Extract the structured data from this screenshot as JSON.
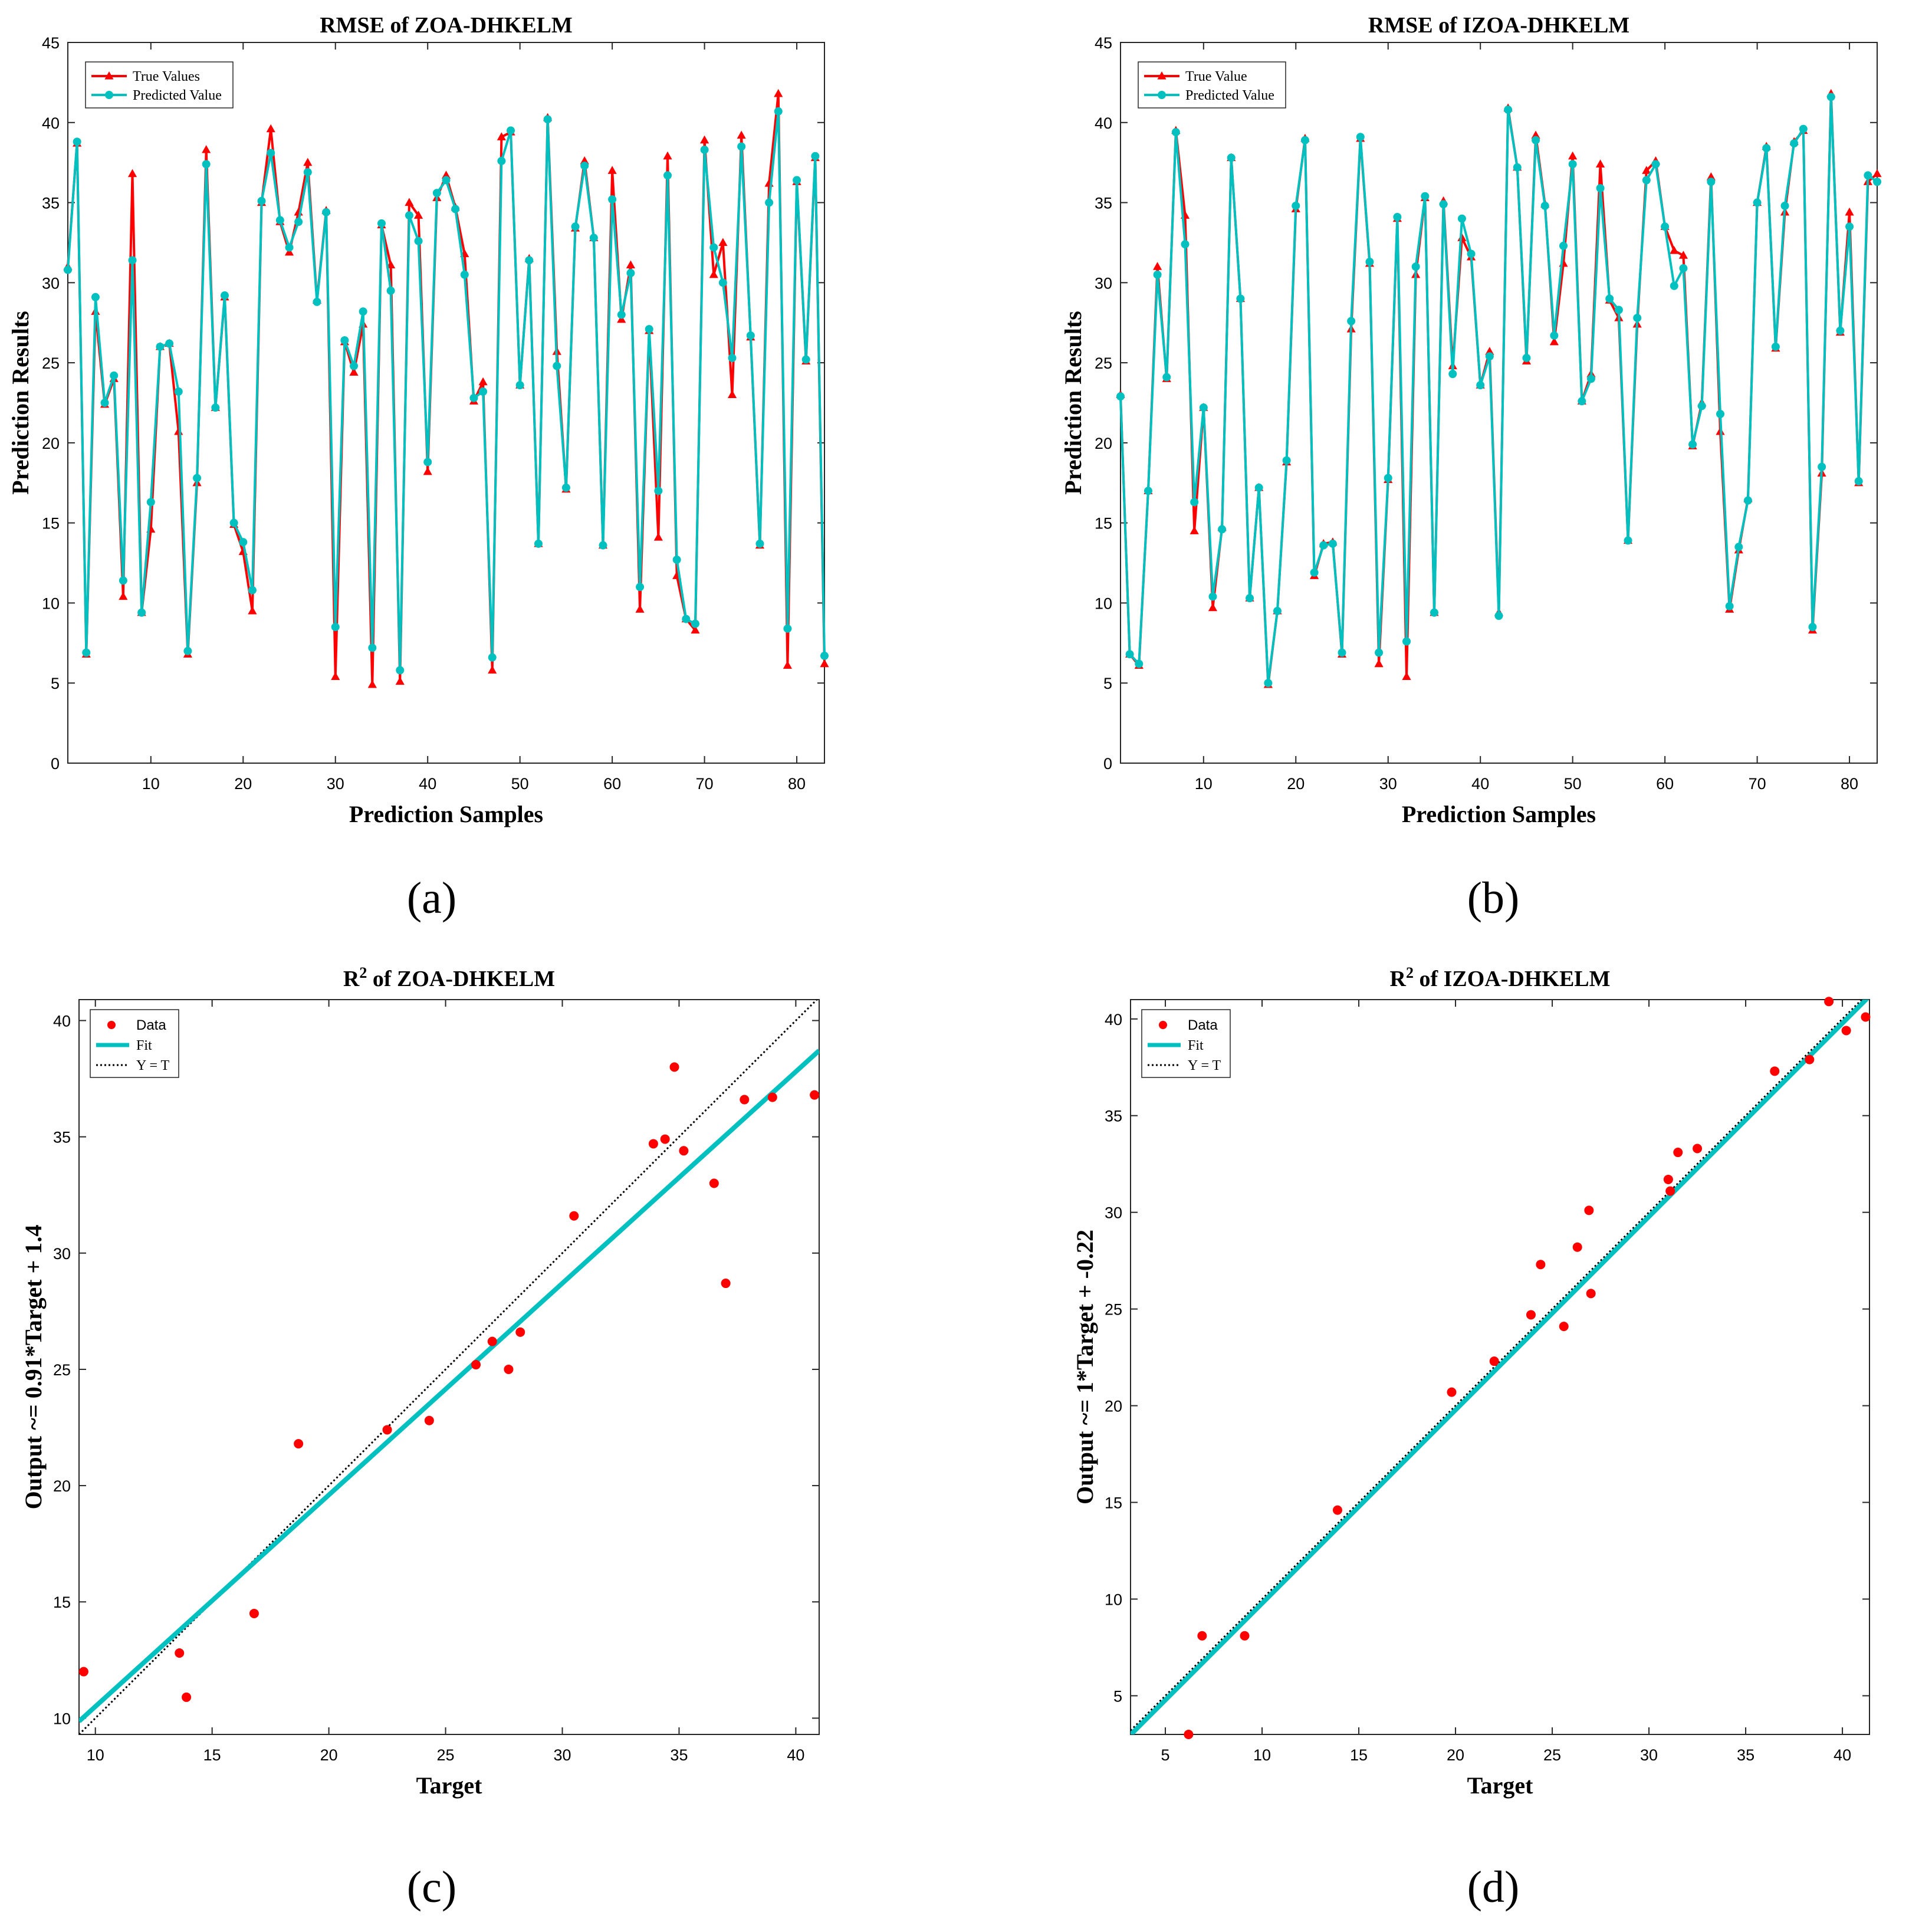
{
  "figure": {
    "panel_labels": [
      "(a)",
      "(b)",
      "(c)",
      "(d)"
    ]
  },
  "colors": {
    "true_values": "#ff0000",
    "predicted": "#00c0c0",
    "fit": "#00c0c0",
    "data_points": "#ff0000",
    "identity_line": "#000000",
    "axes": "#262626"
  },
  "chart_data": [
    {
      "panel": "a",
      "type": "line",
      "title": "RMSE of ZOA-DHKELM",
      "xlabel": "Prediction Samples",
      "ylabel": "Prediction Results",
      "xlim": [
        1,
        83
      ],
      "ylim": [
        0,
        45
      ],
      "xticks": [
        10,
        20,
        30,
        40,
        50,
        60,
        70,
        80
      ],
      "yticks": [
        0,
        5,
        10,
        15,
        20,
        25,
        30,
        35,
        40,
        45
      ],
      "legend": {
        "position": "top-left",
        "entries": [
          "True Values",
          "Predicted Value"
        ]
      },
      "series": [
        {
          "name": "True Values",
          "marker": "triangle",
          "color": "#ff0000",
          "values": [
            31.0,
            38.7,
            6.8,
            28.2,
            22.4,
            24.0,
            10.4,
            36.8,
            9.4,
            14.6,
            26.0,
            26.2,
            20.7,
            6.8,
            17.5,
            38.3,
            22.2,
            29.1,
            14.9,
            13.2,
            9.5,
            35.0,
            39.6,
            33.8,
            31.9,
            34.4,
            37.5,
            28.9,
            34.5,
            5.4,
            26.3,
            24.4,
            27.4,
            4.9,
            33.6,
            31.1,
            5.1,
            35.0,
            34.2,
            18.2,
            35.3,
            36.7,
            34.7,
            31.8,
            22.6,
            23.8,
            5.8,
            39.1,
            39.4,
            23.6,
            31.5,
            13.7,
            40.3,
            25.7,
            17.1,
            33.4,
            37.6,
            32.8,
            13.6,
            37.0,
            27.7,
            31.1,
            9.6,
            27.0,
            14.1,
            37.9,
            11.7,
            9.0,
            8.3,
            38.9,
            30.5,
            32.5,
            23.0,
            39.2,
            26.6,
            13.6,
            36.2,
            41.8,
            6.1,
            36.3,
            25.1,
            37.8,
            6.2
          ]
        },
        {
          "name": "Predicted Value",
          "marker": "circle",
          "color": "#00c0c0",
          "values": [
            30.8,
            38.8,
            6.9,
            29.1,
            22.5,
            24.2,
            11.4,
            31.4,
            9.4,
            16.3,
            26.0,
            26.2,
            23.2,
            7.0,
            17.8,
            37.4,
            22.2,
            29.2,
            15.0,
            13.8,
            10.8,
            35.1,
            38.1,
            33.9,
            32.2,
            33.8,
            36.9,
            28.8,
            34.4,
            8.5,
            26.4,
            24.8,
            28.2,
            7.2,
            33.7,
            29.5,
            5.8,
            34.2,
            32.6,
            18.8,
            35.6,
            36.4,
            34.6,
            30.5,
            22.8,
            23.2,
            6.6,
            37.6,
            39.5,
            23.6,
            31.4,
            13.7,
            40.2,
            24.8,
            17.2,
            33.5,
            37.3,
            32.8,
            13.6,
            35.2,
            28.0,
            30.6,
            11.0,
            27.1,
            17.0,
            36.7,
            12.7,
            9.0,
            8.7,
            38.3,
            32.2,
            30.0,
            25.3,
            38.5,
            26.7,
            13.7,
            35.0,
            40.7,
            8.4,
            36.4,
            25.2,
            37.9,
            6.7
          ]
        }
      ]
    },
    {
      "panel": "b",
      "type": "line",
      "title": "RMSE of IZOA-DHKELM",
      "xlabel": "Prediction Samples",
      "ylabel": "Prediction Results",
      "xlim": [
        1,
        83
      ],
      "ylim": [
        0,
        45
      ],
      "xticks": [
        10,
        20,
        30,
        40,
        50,
        60,
        70,
        80
      ],
      "yticks": [
        0,
        5,
        10,
        15,
        20,
        25,
        30,
        35,
        40,
        45
      ],
      "legend": {
        "position": "top-left",
        "entries": [
          "True Value",
          "Predicted Value"
        ]
      },
      "series": [
        {
          "name": "True Value",
          "marker": "triangle",
          "color": "#ff0000",
          "values": [
            23.0,
            6.8,
            6.1,
            17.0,
            31.0,
            24.0,
            39.5,
            34.2,
            14.5,
            22.2,
            9.7,
            14.7,
            37.8,
            29.0,
            10.3,
            17.2,
            4.9,
            9.5,
            18.8,
            34.6,
            39.0,
            11.7,
            13.7,
            13.8,
            6.8,
            27.1,
            39.0,
            31.2,
            6.2,
            17.7,
            34.0,
            5.4,
            30.5,
            35.3,
            9.4,
            35.1,
            24.8,
            32.8,
            31.6,
            23.6,
            25.7,
            9.4,
            40.9,
            37.2,
            25.1,
            39.2,
            34.9,
            26.3,
            31.2,
            37.9,
            22.6,
            24.3,
            37.4,
            28.9,
            27.8,
            13.9,
            27.4,
            37.0,
            37.6,
            33.5,
            32.0,
            31.7,
            19.8,
            22.5,
            36.6,
            20.7,
            9.6,
            13.3,
            16.5,
            35.0,
            38.5,
            25.9,
            34.4,
            38.8,
            39.5,
            8.3,
            18.1,
            41.8,
            26.9,
            34.4,
            17.5,
            36.3,
            36.8
          ]
        },
        {
          "name": "Predicted Value",
          "marker": "circle",
          "color": "#00c0c0",
          "values": [
            22.9,
            6.8,
            6.2,
            17.0,
            30.5,
            24.1,
            39.4,
            32.4,
            16.3,
            22.2,
            10.4,
            14.6,
            37.8,
            29.0,
            10.3,
            17.2,
            5.0,
            9.5,
            18.9,
            34.8,
            38.9,
            11.9,
            13.6,
            13.7,
            6.9,
            27.6,
            39.1,
            31.3,
            6.9,
            17.8,
            34.1,
            7.6,
            31.0,
            35.4,
            9.4,
            34.9,
            24.3,
            34.0,
            31.8,
            23.6,
            25.4,
            9.2,
            40.8,
            37.2,
            25.3,
            38.9,
            34.8,
            26.7,
            32.3,
            37.4,
            22.6,
            24.0,
            35.9,
            29.0,
            28.3,
            13.9,
            27.8,
            36.4,
            37.4,
            33.5,
            29.8,
            30.9,
            19.9,
            22.3,
            36.3,
            21.8,
            9.8,
            13.5,
            16.4,
            35.0,
            38.4,
            26.0,
            34.8,
            38.7,
            39.6,
            8.5,
            18.5,
            41.6,
            27.0,
            33.5,
            17.6,
            36.7,
            36.3
          ]
        }
      ]
    },
    {
      "panel": "c",
      "type": "scatter",
      "title_main": "R",
      "title_sup": "2",
      "title_rest": " of ZOA-DHKELM",
      "xlabel": "Target",
      "ylabel": "Output ~= 0.91*Target + 1.4",
      "xlim": [
        9.3,
        41.0
      ],
      "ylim": [
        9.3,
        40.9
      ],
      "xticks": [
        10,
        15,
        20,
        25,
        30,
        35,
        40
      ],
      "yticks": [
        10,
        15,
        20,
        25,
        30,
        35,
        40
      ],
      "legend": {
        "position": "top-left",
        "entries": [
          "Data",
          "Fit",
          "Y = T"
        ]
      },
      "fit": {
        "slope": 0.91,
        "intercept": 1.4
      },
      "points": [
        [
          9.5,
          12.0
        ],
        [
          13.6,
          12.8
        ],
        [
          13.9,
          10.9
        ],
        [
          16.8,
          14.5
        ],
        [
          18.7,
          21.8
        ],
        [
          22.5,
          22.4
        ],
        [
          24.3,
          22.8
        ],
        [
          26.3,
          25.2
        ],
        [
          27.0,
          26.2
        ],
        [
          27.7,
          25.0
        ],
        [
          28.2,
          26.6
        ],
        [
          30.5,
          31.6
        ],
        [
          33.9,
          34.7
        ],
        [
          34.4,
          34.9
        ],
        [
          34.8,
          38.0
        ],
        [
          35.2,
          34.4
        ],
        [
          36.5,
          33.0
        ],
        [
          37.0,
          28.7
        ],
        [
          37.8,
          36.6
        ],
        [
          39.0,
          36.7
        ],
        [
          40.8,
          36.8
        ]
      ]
    },
    {
      "panel": "d",
      "type": "scatter",
      "title_main": "R",
      "title_sup": "2",
      "title_rest": " of IZOA-DHKELM",
      "xlabel": "Target",
      "ylabel": "Output ~= 1*Target + -0.22",
      "xlim": [
        3.2,
        41.4
      ],
      "ylim": [
        3.0,
        41.0
      ],
      "xticks": [
        5,
        10,
        15,
        20,
        25,
        30,
        35,
        40
      ],
      "yticks": [
        5,
        10,
        15,
        20,
        25,
        30,
        35,
        40
      ],
      "legend": {
        "position": "top-left",
        "entries": [
          "Data",
          "Fit",
          "Y = T"
        ]
      },
      "fit": {
        "slope": 1.0,
        "intercept": -0.22
      },
      "points": [
        [
          6.2,
          3.0
        ],
        [
          6.9,
          8.1
        ],
        [
          9.1,
          8.1
        ],
        [
          13.9,
          14.6
        ],
        [
          19.8,
          20.7
        ],
        [
          22.0,
          22.3
        ],
        [
          23.9,
          24.7
        ],
        [
          24.4,
          27.3
        ],
        [
          25.6,
          24.1
        ],
        [
          26.3,
          28.2
        ],
        [
          26.9,
          30.1
        ],
        [
          27.0,
          25.8
        ],
        [
          31.0,
          31.7
        ],
        [
          31.1,
          31.1
        ],
        [
          31.5,
          33.1
        ],
        [
          32.5,
          33.3
        ],
        [
          36.5,
          37.3
        ],
        [
          38.3,
          37.9
        ],
        [
          39.3,
          40.9
        ],
        [
          40.2,
          39.4
        ],
        [
          41.2,
          40.1
        ]
      ]
    }
  ]
}
